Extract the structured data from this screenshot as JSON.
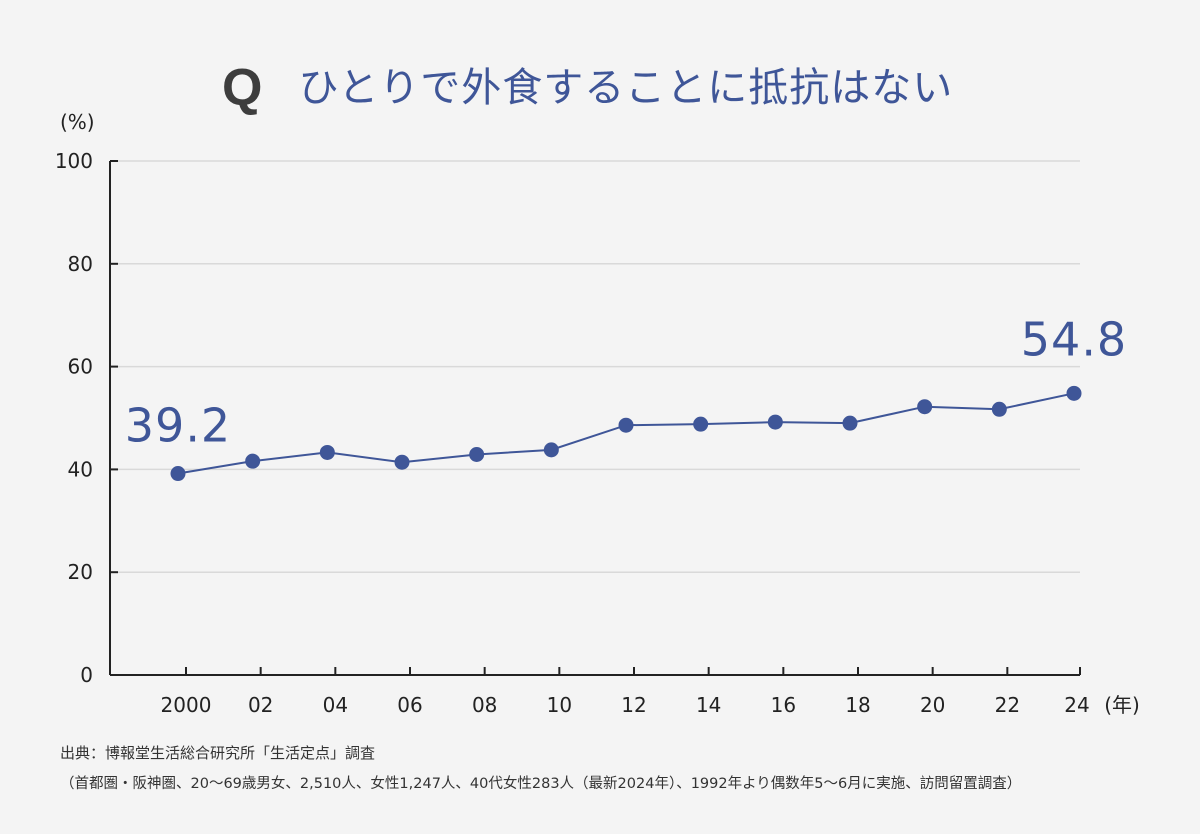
{
  "title": {
    "mark": "Q",
    "text": "ひとりで外食することに抵抗はない"
  },
  "colors": {
    "accent": "#3f5698",
    "axis": "#222222",
    "grid": "#d9d9d9",
    "background": "#f4f4f4"
  },
  "chart_data": {
    "type": "line",
    "ylabel": "(%)",
    "xlabel": "(年)",
    "ylim": [
      0,
      100
    ],
    "yticks": [
      0,
      20,
      40,
      60,
      80,
      100
    ],
    "grid": true,
    "x": [
      2000,
      2002,
      2004,
      2006,
      2008,
      2010,
      2012,
      2014,
      2016,
      2018,
      2020,
      2022,
      2024
    ],
    "xtick_labels": [
      "2000",
      "02",
      "04",
      "06",
      "08",
      "10",
      "12",
      "14",
      "16",
      "18",
      "20",
      "22",
      "24"
    ],
    "series": [
      {
        "values": [
          39.2,
          41.6,
          43.3,
          41.4,
          42.9,
          43.8,
          48.6,
          48.8,
          49.2,
          49.0,
          52.2,
          51.7,
          54.8
        ],
        "color": "#3f5698"
      }
    ],
    "annotations": [
      {
        "text": "39.2",
        "x": 2000
      },
      {
        "text": "54.8",
        "x": 2024
      }
    ]
  },
  "source": {
    "line1": "出典：博報堂生活総合研究所「生活定点」調査",
    "line2": "（首都圏・阪神圏、20～69歳男女、2,510人、女性1,247人、40代女性283人（最新2024年）、1992年より偶数年5～6月に実施、訪問留置調査）"
  }
}
